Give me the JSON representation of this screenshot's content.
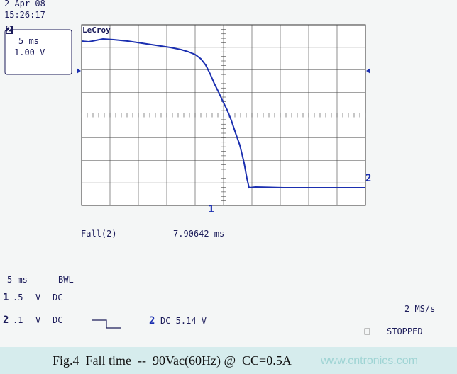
{
  "header": {
    "date": "2-Apr-08",
    "time": "15:26:17"
  },
  "channel_box": {
    "channel": "2",
    "timebase": "5 ms",
    "volts": "1.00 V"
  },
  "brand": "LeCroy",
  "markers": {
    "trigger": "1",
    "trace": "2"
  },
  "measurement": {
    "label": "Fall(2)",
    "value": "7.90642 ms"
  },
  "settings": {
    "timebase": "5 ms",
    "bwl": "BWL",
    "ch1": {
      "id": "1",
      "scale": ".5",
      "unit": "V",
      "coupling": "DC"
    },
    "ch2": {
      "id": "2",
      "scale": ".1",
      "unit": "V",
      "coupling": "DC"
    },
    "trigger": {
      "id": "2",
      "text": "DC 5.14 V"
    },
    "sample_rate": "2 MS/s",
    "state": "STOPPED"
  },
  "caption": "Fig.4  Fall time  --  90Vac(60Hz) @  CC=0.5A",
  "watermark": "www.cntronics.com"
}
